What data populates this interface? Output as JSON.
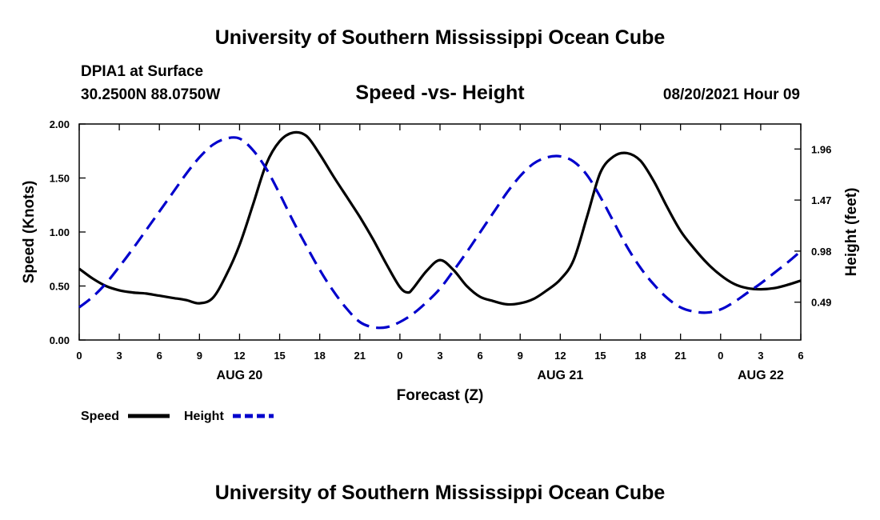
{
  "header": {
    "title": "University of Southern Mississippi Ocean Cube",
    "station": "DPIA1 at Surface",
    "coords": "30.2500N  88.0750W",
    "date": "08/20/2021 Hour 09"
  },
  "footer": {
    "title": "University of Southern Mississippi Ocean Cube"
  },
  "chart_data": {
    "type": "line",
    "title": "Speed -vs- Height",
    "xlabel": "Forecast (Z)",
    "ylabel": "Speed (Knots)",
    "y2label": "Height (feet)",
    "xlim": [
      0,
      54
    ],
    "ylim": [
      0,
      2
    ],
    "y2lim": [
      0.127,
      2.2
    ],
    "grid": false,
    "legend_position": "bottom-left",
    "x_ticks": [
      0,
      3,
      6,
      9,
      12,
      15,
      18,
      21,
      24,
      27,
      30,
      33,
      36,
      39,
      42,
      45,
      48,
      51,
      54
    ],
    "x_tick_labels": [
      "0",
      "3",
      "6",
      "9",
      "12",
      "15",
      "18",
      "21",
      "0",
      "3",
      "6",
      "9",
      "12",
      "15",
      "18",
      "21",
      "0",
      "3",
      "6"
    ],
    "y_ticks": [
      0,
      0.5,
      1,
      1.5,
      2
    ],
    "y_tick_labels": [
      "0.00",
      "0.50",
      "1.00",
      "1.50",
      "2.00"
    ],
    "y2_ticks": [
      0.49,
      0.98,
      1.47,
      1.96
    ],
    "y2_tick_labels": [
      "0.49",
      "0.98",
      "1.47",
      "1.96"
    ],
    "day_labels": [
      {
        "x": 12,
        "label": "AUG 20"
      },
      {
        "x": 36,
        "label": "AUG 21"
      },
      {
        "x": 51,
        "label": "AUG 22"
      }
    ],
    "series": [
      {
        "name": "Speed",
        "axis": "left",
        "color": "#000000",
        "dash": "solid",
        "x": [
          0,
          1,
          2,
          3,
          4,
          5,
          6,
          7,
          8,
          9,
          10,
          11,
          12,
          13,
          14,
          15,
          16,
          17,
          18,
          19,
          20,
          21,
          22,
          23,
          24,
          24.6,
          25,
          26,
          27,
          28,
          29,
          30,
          31,
          32,
          33,
          34,
          35,
          36,
          37,
          38,
          39,
          40,
          41,
          42,
          43,
          44,
          45,
          46,
          47,
          48,
          49,
          50,
          51,
          52,
          53,
          54
        ],
        "values": [
          0.66,
          0.57,
          0.5,
          0.46,
          0.44,
          0.43,
          0.41,
          0.39,
          0.37,
          0.34,
          0.39,
          0.6,
          0.88,
          1.25,
          1.63,
          1.84,
          1.92,
          1.89,
          1.72,
          1.52,
          1.33,
          1.14,
          0.93,
          0.7,
          0.49,
          0.44,
          0.48,
          0.64,
          0.74,
          0.65,
          0.5,
          0.4,
          0.36,
          0.33,
          0.34,
          0.38,
          0.46,
          0.56,
          0.74,
          1.14,
          1.55,
          1.7,
          1.73,
          1.66,
          1.47,
          1.23,
          1.01,
          0.85,
          0.71,
          0.6,
          0.52,
          0.48,
          0.47,
          0.48,
          0.51,
          0.55
        ]
      },
      {
        "name": "Height",
        "axis": "right",
        "color": "#0000cc",
        "dash": "dashed",
        "x": [
          0,
          1,
          2,
          3,
          4,
          5,
          6,
          7,
          8,
          9,
          10,
          11,
          12,
          13,
          14,
          15,
          16,
          17,
          18,
          19,
          20,
          21,
          22,
          23,
          24,
          25,
          26,
          27,
          28,
          29,
          30,
          31,
          32,
          33,
          34,
          35,
          36,
          37,
          38,
          39,
          40,
          41,
          42,
          43,
          44,
          45,
          46,
          47,
          48,
          49,
          50,
          51,
          52,
          53,
          54
        ],
        "values": [
          0.44,
          0.54,
          0.67,
          0.83,
          1.0,
          1.18,
          1.36,
          1.54,
          1.72,
          1.88,
          2.0,
          2.06,
          2.06,
          1.95,
          1.77,
          1.53,
          1.27,
          1.03,
          0.8,
          0.6,
          0.43,
          0.3,
          0.25,
          0.25,
          0.3,
          0.38,
          0.49,
          0.62,
          0.79,
          0.97,
          1.16,
          1.35,
          1.54,
          1.7,
          1.82,
          1.88,
          1.89,
          1.84,
          1.71,
          1.5,
          1.26,
          1.02,
          0.82,
          0.66,
          0.53,
          0.44,
          0.4,
          0.39,
          0.42,
          0.49,
          0.58,
          0.67,
          0.77,
          0.87,
          0.98
        ]
      }
    ],
    "legend": [
      {
        "label": "Speed",
        "color": "#000000",
        "dash": "solid"
      },
      {
        "label": "Height",
        "color": "#0000cc",
        "dash": "dashed"
      }
    ]
  }
}
